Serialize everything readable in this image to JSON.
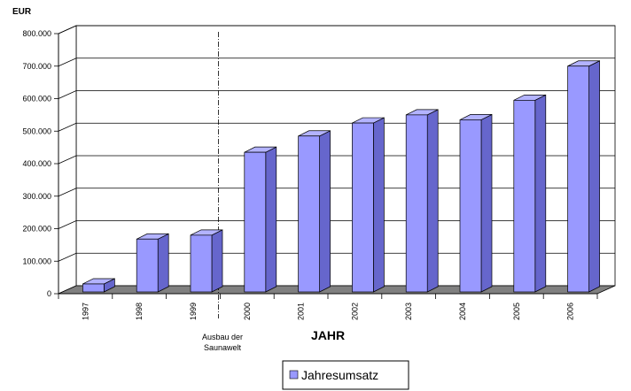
{
  "chart_data": {
    "type": "bar",
    "title": "",
    "ylabel": "EUR",
    "xlabel": "JAHR",
    "ylim": [
      0,
      800000
    ],
    "yticks": [
      "0",
      "100.000",
      "200.000",
      "300.000",
      "400.000",
      "500.000",
      "600.000",
      "700.000",
      "800.000"
    ],
    "categories": [
      "1997",
      "1998",
      "1999",
      "2000",
      "2001",
      "2002",
      "2003",
      "2004",
      "2005",
      "2006"
    ],
    "series": [
      {
        "name": "Jahresumsatz",
        "values": [
          30000,
          168000,
          180000,
          435000,
          485000,
          525000,
          550000,
          535000,
          595000,
          700000
        ]
      }
    ],
    "annotation": {
      "text_line1": "Ausbau der",
      "text_line2": "Saunawelt",
      "between": [
        "1999",
        "2000"
      ]
    },
    "legend_position": "bottom-center",
    "grid": true,
    "colors": {
      "bar_front": "#9999ff",
      "bar_side": "#6666cc",
      "bar_top": "#b3b3ff",
      "floor": "#808080"
    }
  }
}
